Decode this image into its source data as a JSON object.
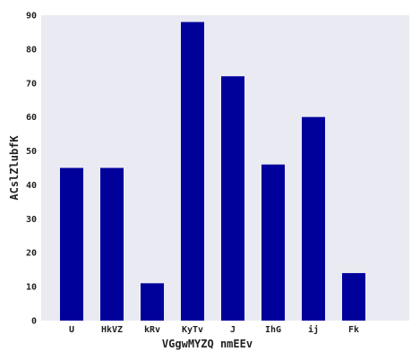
{
  "chart_data": {
    "type": "bar",
    "title": "",
    "xlabel": "VGgwMYZQ nmEEv",
    "ylabel": "ACslZlubfK",
    "categories": [
      "U",
      "HkVZ",
      "kRv",
      "KyTv",
      "J",
      "IhG",
      "ij",
      "Fk"
    ],
    "values": [
      45,
      45,
      11,
      88,
      72,
      46,
      60,
      14
    ],
    "ylim": [
      0,
      90
    ],
    "yticks": [
      0,
      10,
      20,
      30,
      40,
      50,
      60,
      70,
      80,
      90
    ],
    "grid": false,
    "bar_color": "#00009b",
    "background_color": "#eaeaf2"
  }
}
